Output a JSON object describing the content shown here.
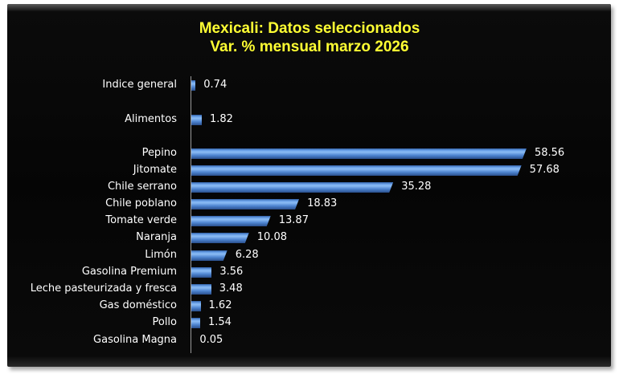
{
  "chart_data": {
    "type": "bar",
    "orientation": "horizontal",
    "title": "Mexicali: Datos seleccionados",
    "subtitle": "Var. % mensual marzo 2026",
    "xlabel": "",
    "ylabel": "",
    "grid": false,
    "legend": null,
    "categories": [
      "Indice general",
      "Alimentos",
      "Pepino",
      "Jitomate",
      "Chile serrano",
      "Chile poblano",
      "Tomate verde",
      "Naranja",
      "Limón",
      "Gasolina Premium",
      "Leche pasteurizada y fresca",
      "Gas doméstico",
      "Pollo",
      "Gasolina Magna"
    ],
    "values": [
      0.74,
      1.82,
      58.56,
      57.68,
      35.28,
      18.83,
      13.87,
      10.08,
      6.28,
      3.56,
      3.48,
      1.62,
      1.54,
      0.05
    ],
    "value_labels": [
      "0.74",
      "1.82",
      "58.56",
      "57.68",
      "35.28",
      "18.83",
      "13.87",
      "10.08",
      "6.28",
      "3.56",
      "3.48",
      "1.62",
      "1.54",
      "0.05"
    ],
    "colors": {
      "background": "#050505",
      "title": "#ffff33",
      "bar": "#4f86d2",
      "text": "#ffffff",
      "axis": "#9a9a9a"
    }
  }
}
